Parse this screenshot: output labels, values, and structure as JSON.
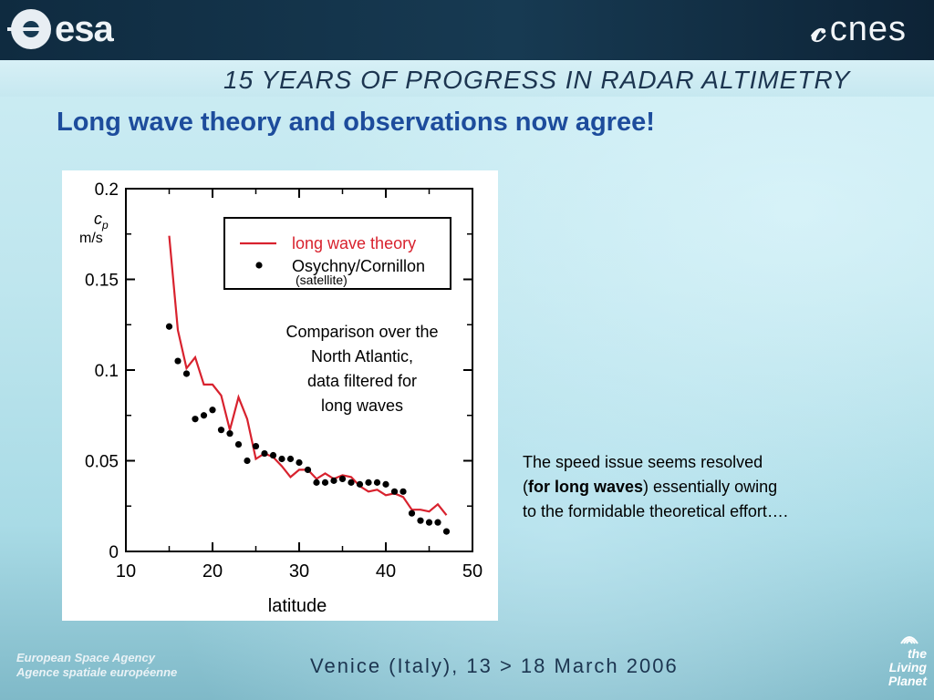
{
  "header": {
    "esa_logo": "esa",
    "cnes_logo": "cnes",
    "banner": "15 YEARS OF PROGRESS IN RADAR ALTIMETRY"
  },
  "slide": {
    "title": "Long wave theory and observations now agree!",
    "comparison_note": [
      "Comparison over the",
      "North Atlantic,",
      "data filtered for",
      "long waves"
    ],
    "note_line1": "The speed issue seems resolved",
    "note_line2_pre": "(",
    "note_line2_bold": "for long waves",
    "note_line2_post": ") essentially owing",
    "note_line3": "to the formidable theoretical effort…."
  },
  "footer": {
    "agency_en": "European Space Agency",
    "agency_fr": "Agence spatiale européenne",
    "venue": "Venice (Italy), 13 > 18 March 2006",
    "living_planet_1": "the",
    "living_planet_2": "Living Planet"
  },
  "chart_data": {
    "type": "line",
    "xlabel": "latitude",
    "ylabel_symbol": "c",
    "ylabel_subscript": "p",
    "ylabel_unit": "m/s",
    "xlim": [
      10,
      50
    ],
    "ylim": [
      0,
      0.2
    ],
    "x_ticks": [
      "10",
      "20",
      "30",
      "40",
      "50"
    ],
    "y_ticks": [
      "0",
      "0.05",
      "0.1",
      "0.15",
      "0.2"
    ],
    "legend_position": "top-right",
    "satellite_note": "(satellite)",
    "colors": {
      "theory": "#d8222e",
      "observations": "#000000"
    },
    "series": [
      {
        "name": "long wave theory",
        "style": "line",
        "x": [
          15,
          16,
          17,
          18,
          19,
          20,
          21,
          22,
          23,
          24,
          25,
          26,
          27,
          28,
          29,
          30,
          31,
          32,
          33,
          34,
          35,
          36,
          37,
          38,
          39,
          40,
          41,
          42,
          43,
          44,
          45,
          46,
          47
        ],
        "y": [
          0.174,
          0.122,
          0.101,
          0.107,
          0.092,
          0.092,
          0.086,
          0.067,
          0.085,
          0.073,
          0.051,
          0.054,
          0.052,
          0.047,
          0.041,
          0.045,
          0.045,
          0.04,
          0.043,
          0.04,
          0.042,
          0.041,
          0.036,
          0.033,
          0.034,
          0.031,
          0.032,
          0.03,
          0.023,
          0.023,
          0.022,
          0.026,
          0.02
        ]
      },
      {
        "name": "Osychny/Cornillon",
        "style": "points",
        "x": [
          15,
          16,
          17,
          18,
          19,
          20,
          21,
          22,
          23,
          24,
          25,
          26,
          27,
          28,
          29,
          30,
          31,
          32,
          33,
          34,
          35,
          36,
          37,
          38,
          39,
          40,
          41,
          42,
          43,
          44,
          45,
          46,
          47
        ],
        "y": [
          0.124,
          0.105,
          0.098,
          0.073,
          0.075,
          0.078,
          0.067,
          0.065,
          0.059,
          0.05,
          0.058,
          0.054,
          0.053,
          0.051,
          0.051,
          0.049,
          0.045,
          0.038,
          0.038,
          0.039,
          0.04,
          0.038,
          0.037,
          0.038,
          0.038,
          0.037,
          0.033,
          0.033,
          0.021,
          0.017,
          0.016,
          0.016,
          0.011
        ]
      }
    ]
  }
}
